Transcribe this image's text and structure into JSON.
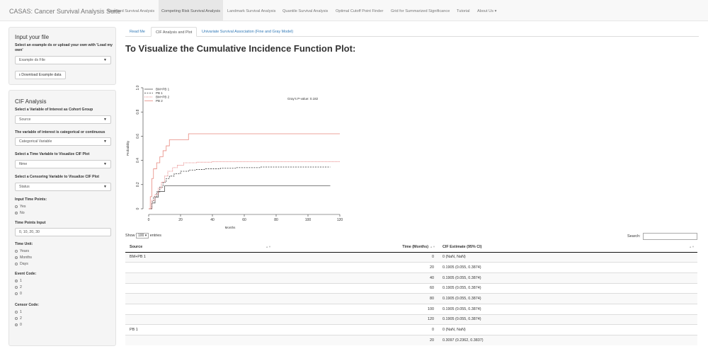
{
  "navbar": {
    "brand": "CASAS: Cancer Survival Analysis Suite",
    "items": [
      {
        "label": "Standard Survival Analysis"
      },
      {
        "label": "Competing Risk Survival Analysis",
        "active": true
      },
      {
        "label": "Landmark Survival Analysis"
      },
      {
        "label": "Quantile Survival Analysis"
      },
      {
        "label": "Optimal Cutoff Point Finder"
      },
      {
        "label": "Grid for Summarized Significance"
      },
      {
        "label": "Tutorial"
      },
      {
        "label": "About Us ▾"
      }
    ]
  },
  "file_panel": {
    "title": "Input your file",
    "help": "Select an example ds or upload your own with 'Load my own'",
    "dataset_value": "Example ds File",
    "download_label": "⭳ Download Example data"
  },
  "cif_panel": {
    "title": "CIF Analysis",
    "cohort_label": "Select a Variable of Interest as Cohort Group",
    "cohort_value": "Source",
    "type_label": "The variable of interest is categorical or continuous",
    "type_value": "Categorical Variable",
    "time_label": "Select a Time Variable to Visualize CIF Plot",
    "time_value": "ftime",
    "censor_label": "Select a Censoring Variable to Visualize CIF Plot",
    "censor_value": "Status",
    "timepoints_label": "Input Time Points:",
    "timepoints_options": [
      "Yes",
      "No"
    ],
    "timepoints_selected": 1,
    "tp_input_label": "Time Points Input",
    "tp_input_value": "0, 10, 20, 30",
    "unit_label": "Time Unit:",
    "unit_options": [
      "Years",
      "Months",
      "Days"
    ],
    "unit_selected": 1,
    "event_label": "Event Code:",
    "event_options": [
      "1",
      "2",
      "0"
    ],
    "event_selected": 0,
    "censor_code_label": "Censor Code:",
    "censor_code_options": [
      "1",
      "2",
      "0"
    ],
    "censor_code_selected": 2
  },
  "tabs": [
    {
      "label": "Read Me"
    },
    {
      "label": "CIF Analysis and Plot",
      "active": true
    },
    {
      "label": "Univariate Survival Association (Fine and Gray Model)"
    }
  ],
  "main_title": "To Visualize the Cumulative Incidence Function Plot:",
  "chart_data": {
    "type": "line",
    "xlabel": "Months",
    "ylabel": "Probability",
    "xlim": [
      0,
      120
    ],
    "ylim": [
      0,
      1
    ],
    "xticks": [
      0,
      20,
      40,
      60,
      80,
      100,
      120
    ],
    "yticks": [
      0,
      0.2,
      0.4,
      0.6,
      0.8,
      1.0
    ],
    "annotation": "Gray's P-value: 0.182",
    "legend_position": "top-left",
    "series": [
      {
        "name": "BM+PB 1",
        "color": "#555555",
        "dash": "",
        "x": [
          0,
          2,
          4,
          6,
          10,
          114
        ],
        "y": [
          0,
          0.048,
          0.095,
          0.143,
          0.19,
          0.19
        ]
      },
      {
        "name": "PB 1",
        "color": "#333333",
        "dash": "2,1.5",
        "x": [
          0,
          2,
          3,
          5,
          7,
          9,
          11,
          13,
          16,
          20,
          25,
          30,
          35,
          45,
          55,
          70,
          114
        ],
        "y": [
          0,
          0.06,
          0.1,
          0.14,
          0.18,
          0.22,
          0.25,
          0.27,
          0.29,
          0.31,
          0.32,
          0.325,
          0.33,
          0.335,
          0.34,
          0.345,
          0.345
        ]
      },
      {
        "name": "BM+PB 2",
        "color": "#e06666",
        "dash": "1,1",
        "x": [
          0,
          2,
          4,
          6,
          8,
          10,
          12,
          15,
          18,
          22,
          30,
          40,
          120
        ],
        "y": [
          0,
          0.07,
          0.12,
          0.17,
          0.22,
          0.27,
          0.31,
          0.34,
          0.36,
          0.38,
          0.385,
          0.39,
          0.39
        ]
      },
      {
        "name": "PB 2",
        "color": "#e8897f",
        "dash": "",
        "x": [
          0,
          1,
          2,
          3,
          5,
          7,
          9,
          11,
          13,
          25,
          120
        ],
        "y": [
          0,
          0.1,
          0.25,
          0.33,
          0.38,
          0.43,
          0.48,
          0.52,
          0.57,
          0.62,
          0.62
        ]
      }
    ]
  },
  "datatable": {
    "show_prefix": "Show",
    "show_value": "100 ▾",
    "show_suffix": "entries",
    "search_label": "Search:",
    "columns": [
      "Source",
      "Time (Months)",
      "CIF Estimate (95% CI)"
    ],
    "rows": [
      [
        "BM+PB 1",
        "0",
        "0 (NaN, NaN)"
      ],
      [
        "",
        "20",
        "0.1905 (0.055, 0.3874)"
      ],
      [
        "",
        "40",
        "0.1905 (0.055, 0.3874)"
      ],
      [
        "",
        "60",
        "0.1905 (0.055, 0.3874)"
      ],
      [
        "",
        "80",
        "0.1905 (0.055, 0.3874)"
      ],
      [
        "",
        "100",
        "0.1905 (0.055, 0.3874)"
      ],
      [
        "",
        "120",
        "0.1905 (0.055, 0.3874)"
      ],
      [
        "PB 1",
        "0",
        "0 (NaN, NaN)"
      ],
      [
        "",
        "20",
        "0.3097 (0.2362, 0.3837)"
      ]
    ]
  }
}
